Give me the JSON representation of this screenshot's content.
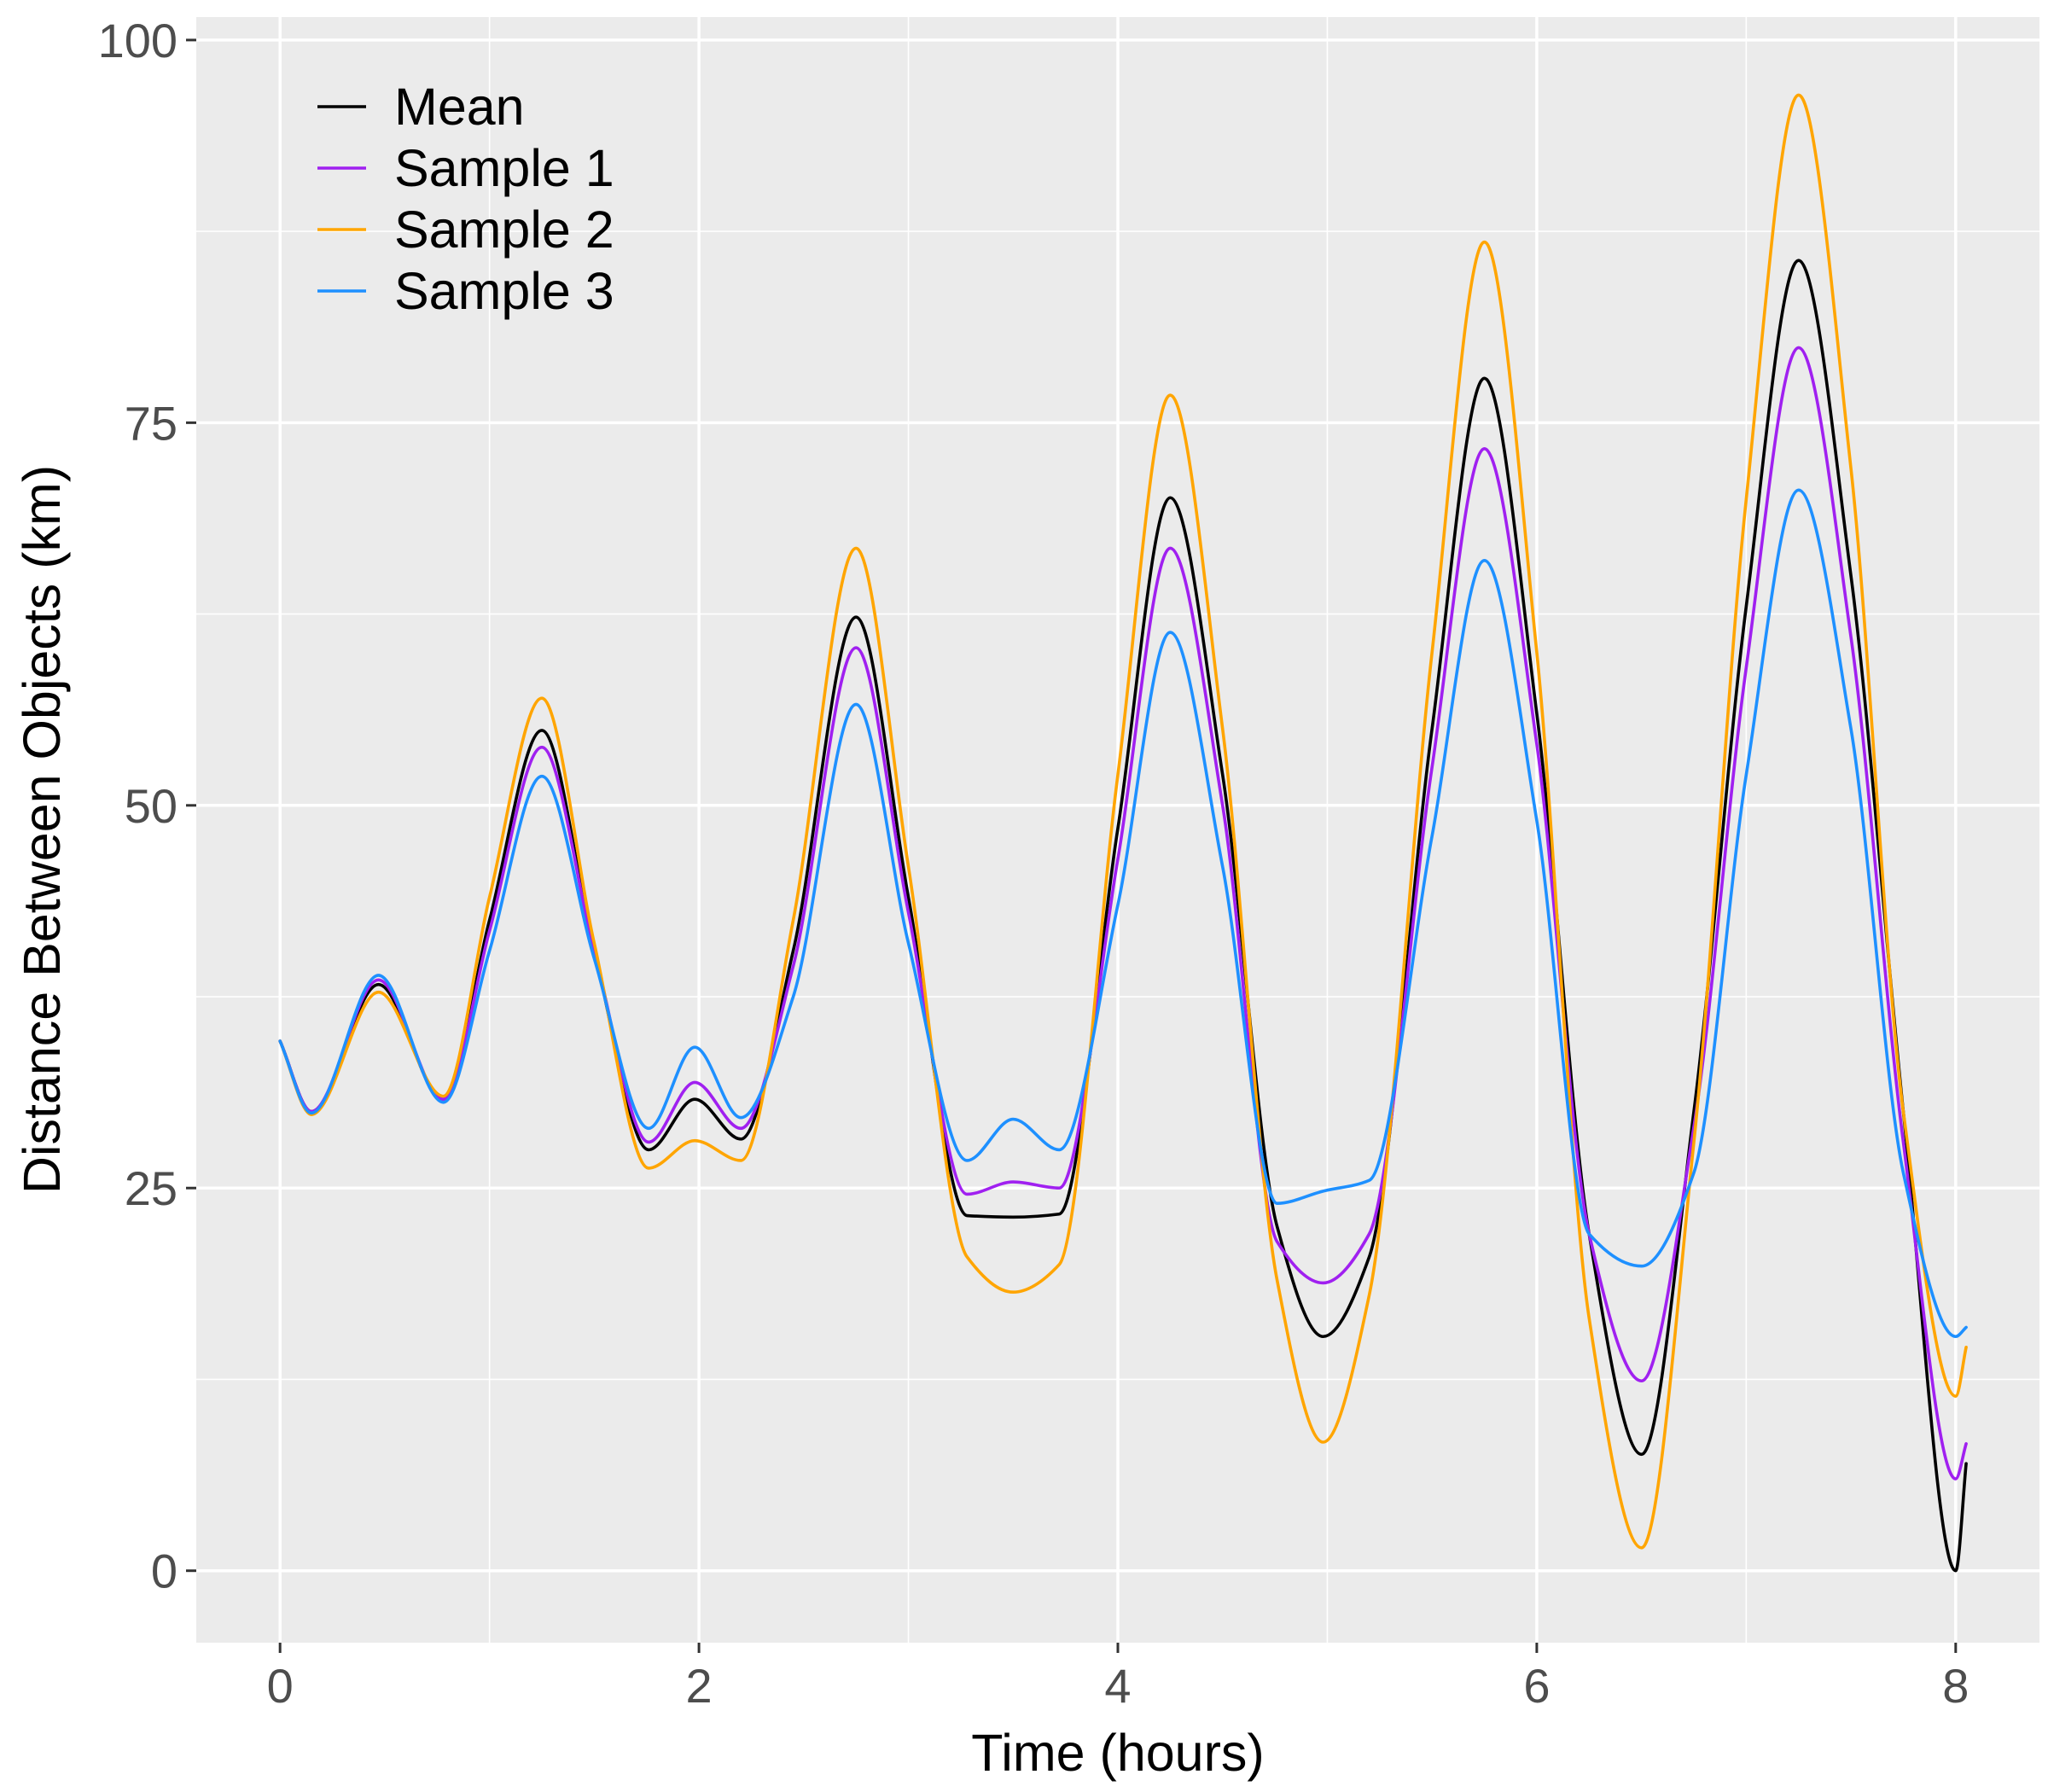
{
  "chart_data": {
    "type": "line",
    "title": "",
    "xlabel": "Time (hours)",
    "ylabel": "Distance Between Objects (km)",
    "xlim": [
      -0.4,
      8.4
    ],
    "ylim": [
      -4.7,
      101.5
    ],
    "x_ticks": [
      0,
      2,
      4,
      6,
      8
    ],
    "x_tick_labels": [
      "0",
      "2",
      "4",
      "6",
      "8"
    ],
    "y_ticks": [
      0,
      25,
      50,
      75,
      100
    ],
    "y_tick_labels": [
      "0",
      "25",
      "50",
      "75",
      "100"
    ],
    "grid": true,
    "legend_position": "top-left",
    "series": [
      {
        "name": "Mean",
        "color": "#000000",
        "x": [
          0,
          0.15,
          0.47,
          0.78,
          1.0,
          1.25,
          1.5,
          1.76,
          1.98,
          2.2,
          2.45,
          2.75,
          3.0,
          3.28,
          3.5,
          3.72,
          4.0,
          4.25,
          4.5,
          4.76,
          4.98,
          5.2,
          5.5,
          5.75,
          6.0,
          6.25,
          6.5,
          6.75,
          7.0,
          7.25,
          7.5,
          7.75,
          8.0,
          8.05
        ],
        "y": [
          34.6,
          30.0,
          38.3,
          30.8,
          42.5,
          54.9,
          40.5,
          27.5,
          30.8,
          28.2,
          40.5,
          62.3,
          44.0,
          23.2,
          23.1,
          23.3,
          48.5,
          70.1,
          52.0,
          22.5,
          15.3,
          20.5,
          55.0,
          77.9,
          56.0,
          22.0,
          7.6,
          30.0,
          63.0,
          85.6,
          65.0,
          30.0,
          0.0,
          7.0
        ]
      },
      {
        "name": "Sample 1",
        "color": "#A020F0",
        "x": [
          0,
          0.15,
          0.47,
          0.78,
          1.0,
          1.25,
          1.5,
          1.76,
          1.98,
          2.2,
          2.45,
          2.75,
          3.0,
          3.28,
          3.5,
          3.72,
          4.0,
          4.25,
          4.5,
          4.76,
          4.98,
          5.2,
          5.5,
          5.75,
          6.0,
          6.25,
          6.5,
          6.75,
          7.0,
          7.25,
          7.5,
          7.75,
          8.0,
          8.05
        ],
        "y": [
          34.6,
          30.0,
          38.6,
          30.8,
          41.8,
          53.8,
          40.5,
          28.0,
          31.9,
          28.9,
          39.5,
          60.3,
          43.0,
          24.6,
          25.4,
          25.0,
          46.5,
          66.8,
          50.0,
          21.5,
          18.8,
          22.0,
          52.5,
          73.3,
          54.0,
          22.0,
          12.4,
          29.0,
          59.0,
          79.9,
          61.0,
          28.0,
          6.0,
          8.3
        ]
      },
      {
        "name": "Sample 2",
        "color": "#FFA500",
        "x": [
          0,
          0.15,
          0.47,
          0.78,
          1.0,
          1.25,
          1.5,
          1.76,
          1.98,
          2.2,
          2.45,
          2.75,
          3.0,
          3.28,
          3.5,
          3.72,
          4.0,
          4.25,
          4.5,
          4.76,
          4.98,
          5.2,
          5.5,
          5.75,
          6.0,
          6.25,
          6.5,
          6.75,
          7.0,
          7.25,
          7.5,
          7.75,
          8.0,
          8.05
        ],
        "y": [
          34.6,
          29.8,
          37.8,
          31.0,
          44.0,
          57.0,
          41.0,
          26.3,
          28.1,
          26.8,
          42.5,
          66.8,
          46.0,
          20.5,
          18.2,
          20.0,
          52.0,
          76.8,
          55.0,
          19.0,
          8.4,
          18.0,
          60.0,
          86.8,
          60.0,
          16.5,
          1.5,
          28.0,
          70.0,
          96.4,
          72.0,
          30.0,
          11.4,
          14.6
        ]
      },
      {
        "name": "Sample 3",
        "color": "#1E90FF",
        "x": [
          0,
          0.15,
          0.47,
          0.78,
          1.0,
          1.25,
          1.5,
          1.76,
          1.98,
          2.2,
          2.45,
          2.75,
          3.0,
          3.28,
          3.5,
          3.72,
          4.0,
          4.25,
          4.5,
          4.76,
          4.98,
          5.2,
          5.5,
          5.75,
          6.0,
          6.25,
          6.5,
          6.75,
          7.0,
          7.25,
          7.5,
          7.75,
          8.0,
          8.05
        ],
        "y": [
          34.6,
          29.9,
          38.9,
          30.6,
          40.5,
          51.9,
          40.0,
          28.9,
          34.2,
          29.6,
          37.5,
          56.6,
          41.0,
          26.8,
          29.5,
          27.5,
          43.5,
          61.3,
          46.0,
          24.0,
          24.8,
          25.5,
          48.0,
          66.0,
          49.0,
          22.0,
          19.9,
          26.0,
          52.0,
          70.6,
          55.0,
          26.0,
          15.3,
          15.9
        ]
      }
    ]
  }
}
